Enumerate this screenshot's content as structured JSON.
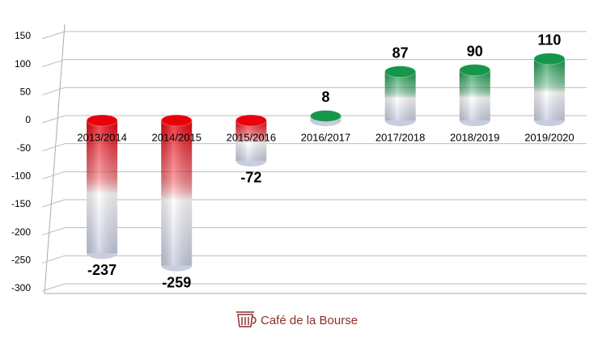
{
  "chart_data": {
    "type": "bar",
    "categories": [
      "2013/2014",
      "2014/2015",
      "2015/2016",
      "2016/2017",
      "2017/2018",
      "2018/2019",
      "2019/2020"
    ],
    "values": [
      -237,
      -259,
      -72,
      8,
      87,
      90,
      110
    ],
    "negative_color": "#e8000b",
    "positive_color": "#16964a",
    "ylim": [
      -300,
      150
    ],
    "yticks": [
      -300,
      -250,
      -200,
      -150,
      -100,
      -50,
      0,
      50,
      100,
      150
    ],
    "grid": true,
    "source": "Café de la Bourse"
  }
}
